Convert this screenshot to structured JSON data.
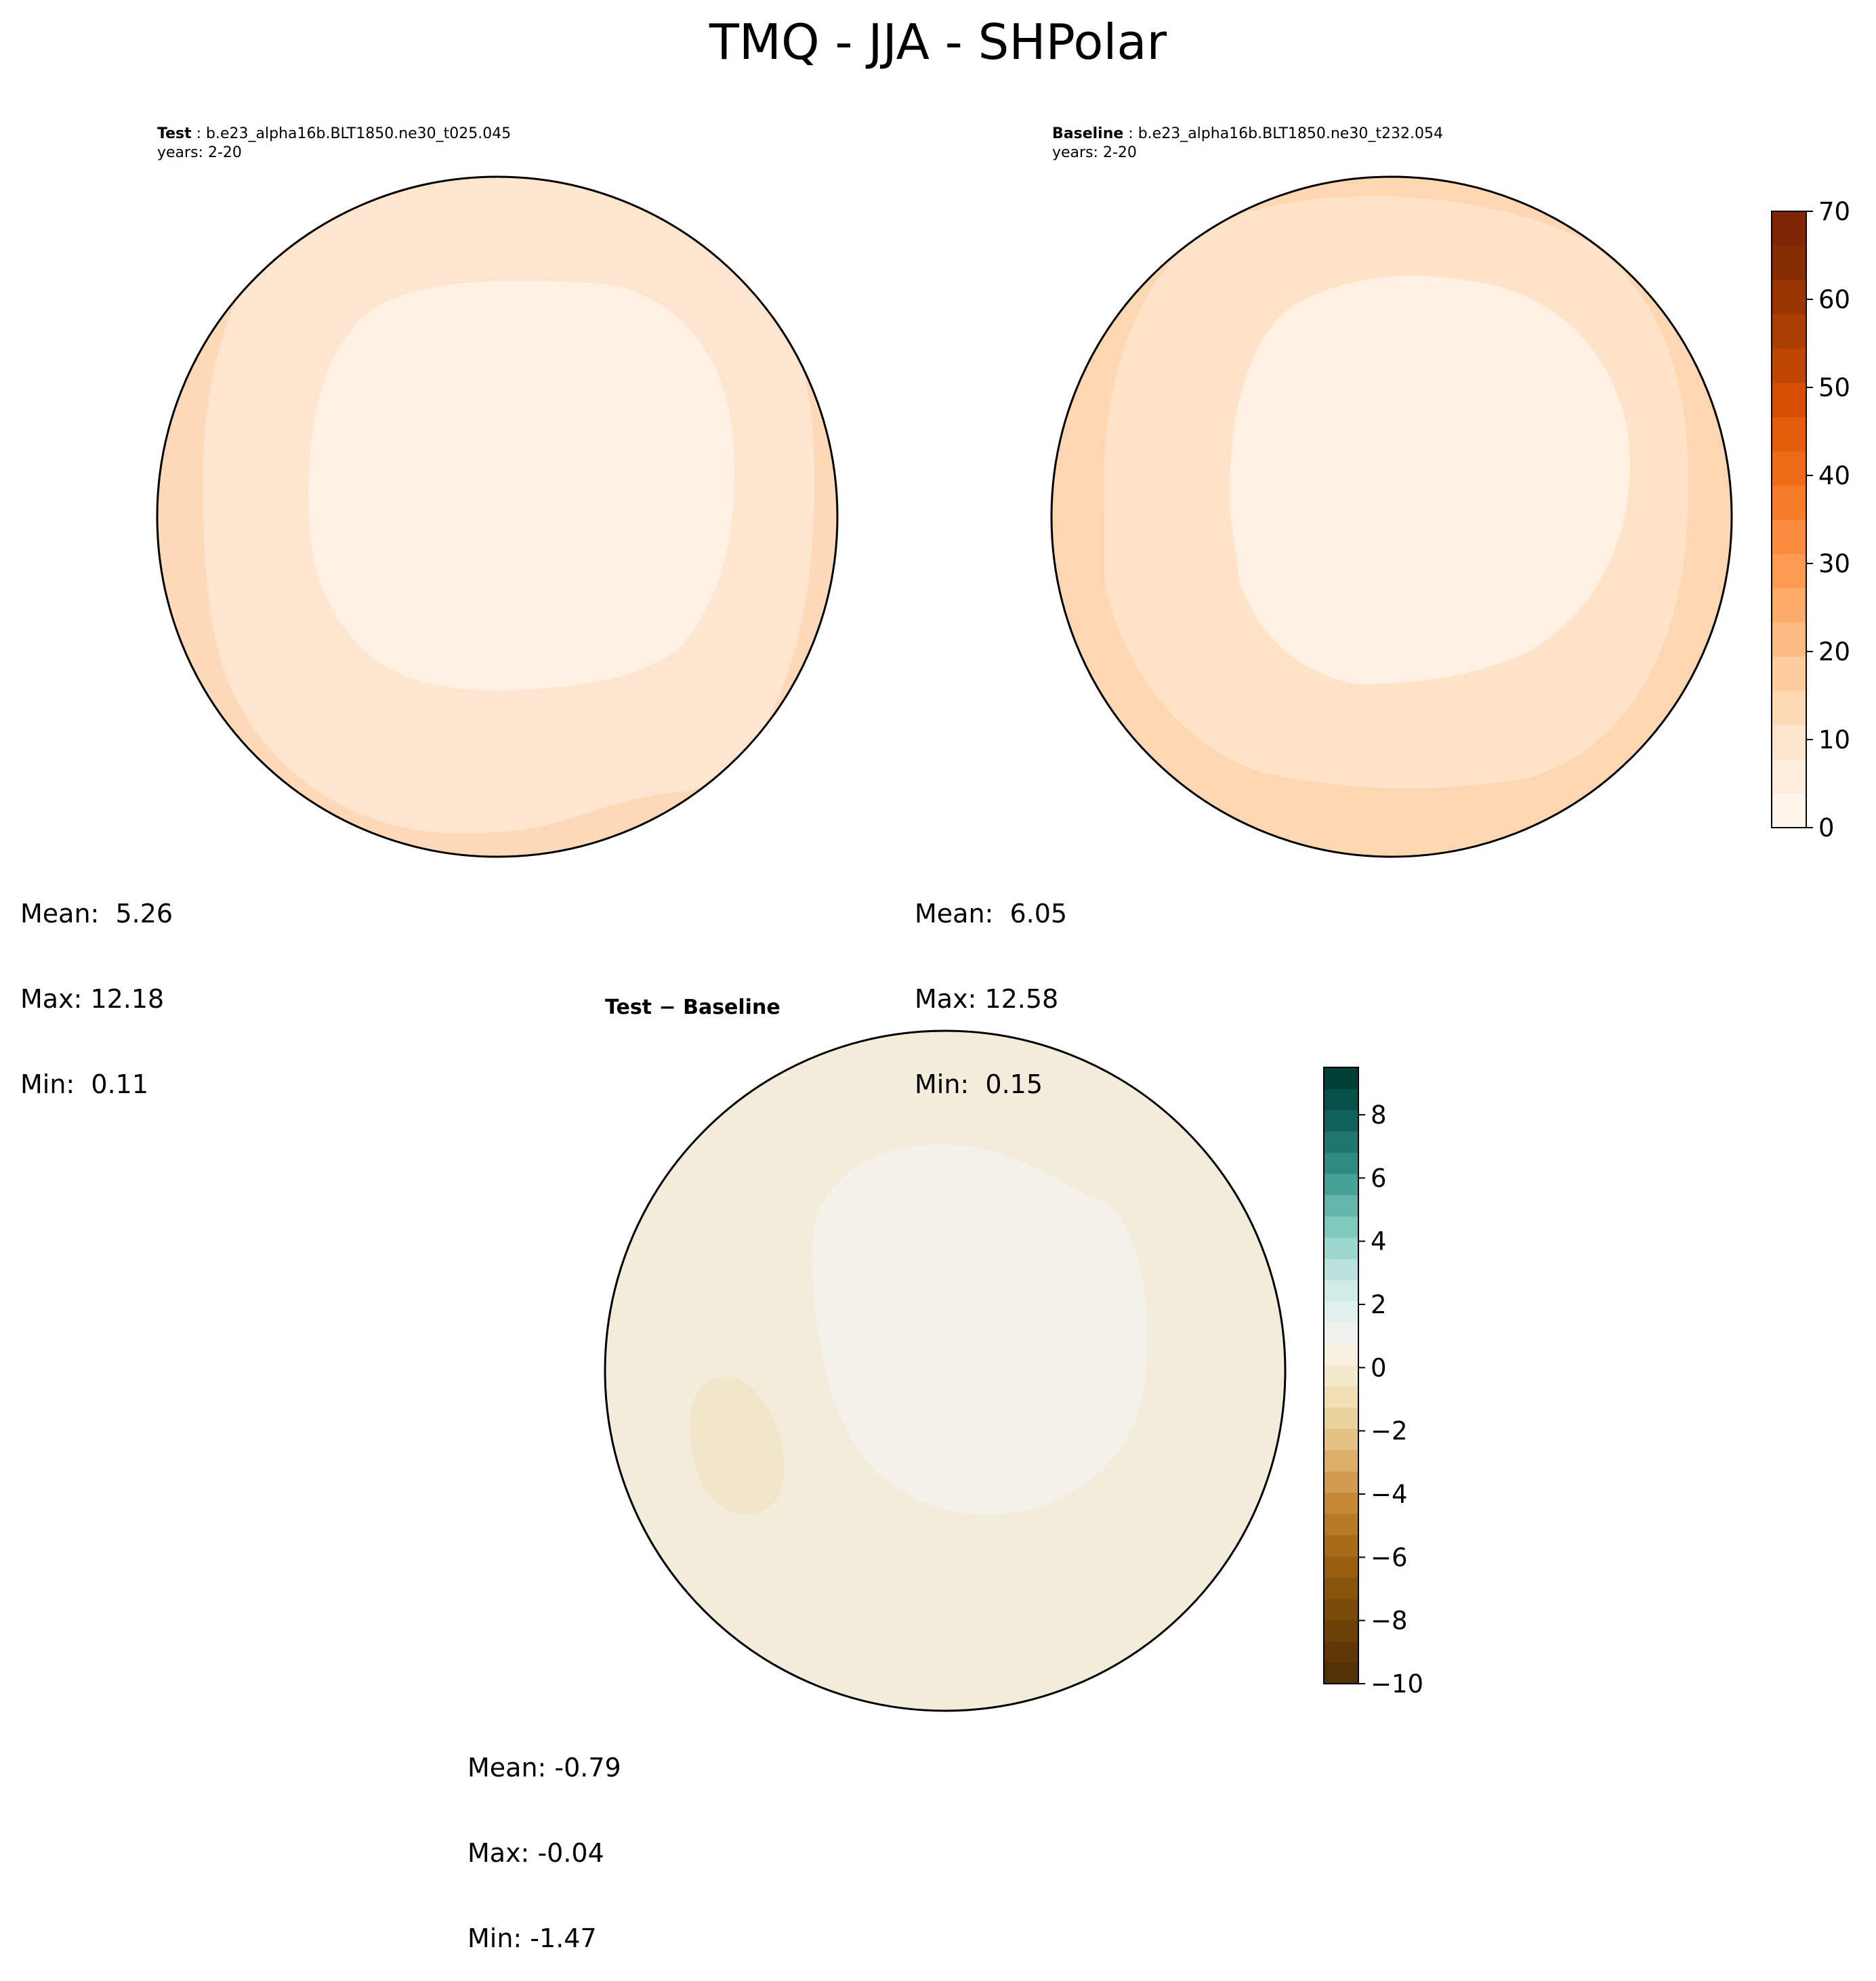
{
  "title": "TMQ - JJA - SHPolar",
  "panels": {
    "test": {
      "label": "Test",
      "case": "b.e23_alpha16b.BLT1850.ne30_t025.045",
      "years": "years: 2-20",
      "stats": {
        "mean": "Mean:  5.26",
        "max": "Max: 12.18",
        "min": "Min:  0.11"
      }
    },
    "baseline": {
      "label": "Baseline",
      "case": "b.e23_alpha16b.BLT1850.ne30_t232.054",
      "years": "years: 2-20",
      "stats": {
        "mean": "Mean:  6.05",
        "max": "Max: 12.58",
        "min": "Min:  0.15"
      }
    },
    "diff": {
      "title_left": "Test",
      "title_sep": "−",
      "title_right": "Baseline",
      "stats": {
        "mean": "Mean: -0.79",
        "max": "Max: -0.04",
        "min": "Min: -1.47"
      }
    }
  },
  "colorbars": {
    "main": {
      "ticks": [
        "0",
        "10",
        "20",
        "30",
        "40",
        "50",
        "60",
        "70"
      ],
      "tick_values": [
        0,
        10,
        20,
        30,
        40,
        50,
        60,
        70
      ],
      "range": [
        0,
        70
      ],
      "colors": [
        "#fff5eb",
        "#feedde",
        "#fee6ce",
        "#fdd9b4",
        "#fdcc9e",
        "#fdbb84",
        "#fdab69",
        "#fd9b52",
        "#fb8b3e",
        "#f67c2a",
        "#ee6c18",
        "#e25c0a",
        "#d54f03",
        "#bf4502",
        "#aa3e03",
        "#983503",
        "#852e04",
        "#7f2704"
      ]
    },
    "diff": {
      "ticks": [
        "8",
        "6",
        "4",
        "2",
        "0",
        "−2",
        "−4",
        "−6",
        "−8",
        "−10"
      ],
      "tick_values": [
        8,
        6,
        4,
        2,
        0,
        -2,
        -4,
        -6,
        -8,
        -10
      ],
      "range": [
        -10,
        9.5
      ],
      "colors": [
        "#543005",
        "#5f3806",
        "#6c4108",
        "#7a4a09",
        "#88540b",
        "#985f10",
        "#a86c18",
        "#b77a25",
        "#c48837",
        "#d09a4f",
        "#dbaf69",
        "#e3c283",
        "#ead39b",
        "#efdfb3",
        "#f3e9cb",
        "#f5f0e0",
        "#f0f2ee",
        "#e2f1ee",
        "#d0ece6",
        "#b9e3dc",
        "#9dd7ce",
        "#80c9bd",
        "#62b6aa",
        "#46a196",
        "#2f8b81",
        "#1e766c",
        "#0f6259",
        "#05514a",
        "#003f36"
      ]
    }
  },
  "maps": {
    "test": {
      "outer": "#fdd9b7",
      "mid": "#fee5cf",
      "inner": "#fef0e3"
    },
    "baseline": {
      "outer": "#fdd7b2",
      "mid": "#fee3c9",
      "inner": "#fef0e2"
    },
    "diff": {
      "base": "#f3ecda",
      "light": "#f3f1ea",
      "dark": "#f2e6c8"
    }
  }
}
